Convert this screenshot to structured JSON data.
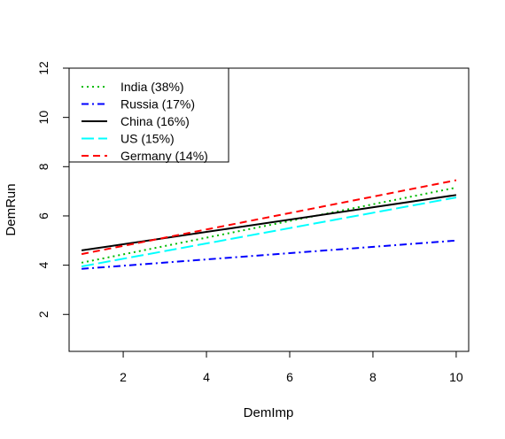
{
  "chart_data": {
    "type": "line",
    "title": "",
    "xlabel": "DemImp",
    "ylabel": "DemRun",
    "xlim": [
      0.7,
      10.3
    ],
    "ylim": [
      0.5,
      12
    ],
    "xticks": [
      2,
      4,
      6,
      8,
      10
    ],
    "yticks": [
      2,
      4,
      6,
      8,
      10,
      12
    ],
    "x": [
      1,
      10
    ],
    "grid": false,
    "legend_position": "top-left",
    "series": [
      {
        "name": "India (38%)",
        "values": [
          4.1,
          7.15
        ],
        "color": "#00bb00",
        "dash": "2,4"
      },
      {
        "name": "Russia (17%)",
        "values": [
          3.85,
          5.0
        ],
        "color": "#0000ff",
        "dash": "8,4,2,4"
      },
      {
        "name": "China (16%)",
        "values": [
          4.6,
          6.85
        ],
        "color": "#000000",
        "dash": ""
      },
      {
        "name": "US (15%)",
        "values": [
          3.95,
          6.75
        ],
        "color": "#00ffff",
        "dash": "14,5"
      },
      {
        "name": "Germany (14%)",
        "values": [
          4.45,
          7.45
        ],
        "color": "#ff0000",
        "dash": "8,5"
      }
    ]
  }
}
